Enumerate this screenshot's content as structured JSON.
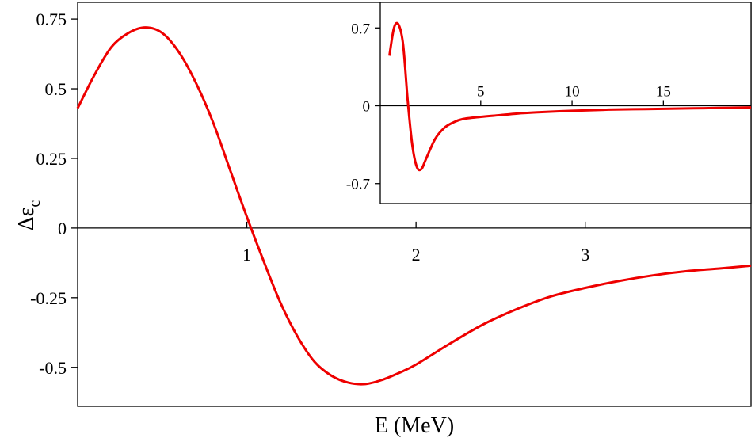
{
  "chart_data": [
    {
      "type": "line",
      "xlabel": "E (MeV)",
      "ylabel": "Δε",
      "ylabel_subscript": "c",
      "xlim": [
        0,
        3.98
      ],
      "ylim": [
        -0.64,
        0.81
      ],
      "xticks": [
        1,
        2,
        3
      ],
      "yticks": [
        0.75,
        0.5,
        0.25,
        0,
        -0.25,
        -0.5
      ],
      "ytick_labels": [
        "0.75",
        "0.5",
        "0.25",
        "0",
        "-0.25",
        "-0.5"
      ],
      "color": "#ee0000",
      "series": [
        {
          "x": [
            0,
            0.1,
            0.2,
            0.3,
            0.4,
            0.5,
            0.6,
            0.7,
            0.8,
            0.9,
            1.0,
            1.1,
            1.2,
            1.3,
            1.4,
            1.5,
            1.6,
            1.7,
            1.8,
            1.9,
            2.0,
            2.2,
            2.4,
            2.6,
            2.8,
            3.0,
            3.2,
            3.4,
            3.6,
            3.8,
            3.98
          ],
          "y": [
            0.43,
            0.55,
            0.65,
            0.7,
            0.72,
            0.7,
            0.63,
            0.52,
            0.38,
            0.21,
            0.04,
            -0.12,
            -0.27,
            -0.39,
            -0.48,
            -0.53,
            -0.555,
            -0.56,
            -0.545,
            -0.52,
            -0.49,
            -0.415,
            -0.345,
            -0.29,
            -0.245,
            -0.215,
            -0.19,
            -0.17,
            -0.155,
            -0.145,
            -0.135
          ]
        }
      ]
    },
    {
      "type": "line",
      "xlim": [
        -0.5,
        19.8
      ],
      "ylim": [
        -0.88,
        0.93
      ],
      "xticks": [
        5,
        10,
        15
      ],
      "yticks": [
        0.7,
        0,
        -0.7
      ],
      "ytick_labels": [
        "0.7",
        "0",
        "-0.7"
      ],
      "color": "#ee0000",
      "series": [
        {
          "x": [
            0,
            0.25,
            0.5,
            0.75,
            1.0,
            1.25,
            1.5,
            1.75,
            2.0,
            2.5,
            3.0,
            3.5,
            4,
            5,
            6,
            7,
            8,
            10,
            12,
            14,
            16,
            18,
            19.8
          ],
          "y": [
            0.45,
            0.7,
            0.73,
            0.55,
            0.05,
            -0.35,
            -0.55,
            -0.57,
            -0.48,
            -0.3,
            -0.2,
            -0.15,
            -0.12,
            -0.1,
            -0.085,
            -0.07,
            -0.06,
            -0.045,
            -0.035,
            -0.03,
            -0.025,
            -0.02,
            -0.015
          ]
        }
      ]
    }
  ]
}
